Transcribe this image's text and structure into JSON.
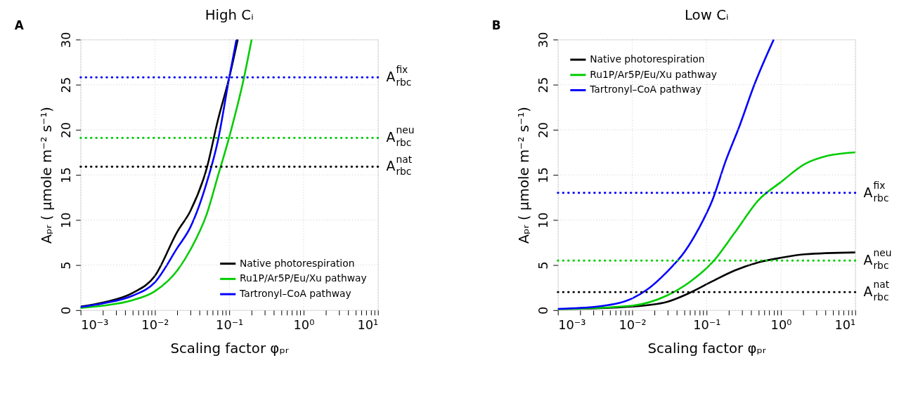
{
  "chart_data": [
    {
      "type": "line",
      "title": "High Cᵢ",
      "xlabel": "Scaling factor φₚᵣ",
      "ylabel": "Aₚᵣ ( μmole m⁻² s⁻¹)",
      "annotations": [
        "A"
      ],
      "log": "x",
      "grid": true,
      "legend": "bottom right",
      "line_style": "solid",
      "xlim": [
        0.001,
        10
      ],
      "ylim": [
        0,
        30
      ],
      "xticks": [
        {
          "value": 0.001,
          "label": "10⁻³"
        },
        {
          "value": 0.002,
          "label": null
        },
        {
          "value": 0.003,
          "label": null
        },
        {
          "value": 0.004,
          "label": null
        },
        {
          "value": 0.005,
          "label": null
        },
        {
          "value": 0.006,
          "label": null
        },
        {
          "value": 0.007,
          "label": null
        },
        {
          "value": 0.008,
          "label": null
        },
        {
          "value": 0.009,
          "label": null
        },
        {
          "value": 0.01,
          "label": "10⁻²"
        },
        {
          "value": 0.02,
          "label": null
        },
        {
          "value": 0.03,
          "label": null
        },
        {
          "value": 0.04,
          "label": null
        },
        {
          "value": 0.05,
          "label": null
        },
        {
          "value": 0.06,
          "label": null
        },
        {
          "value": 0.07,
          "label": null
        },
        {
          "value": 0.08,
          "label": null
        },
        {
          "value": 0.09,
          "label": null
        },
        {
          "value": 0.1,
          "label": "10⁻¹"
        },
        {
          "value": 0.2,
          "label": null
        },
        {
          "value": 0.3,
          "label": null
        },
        {
          "value": 0.4,
          "label": null
        },
        {
          "value": 0.5,
          "label": null
        },
        {
          "value": 0.6,
          "label": null
        },
        {
          "value": 0.7,
          "label": null
        },
        {
          "value": 0.8,
          "label": null
        },
        {
          "value": 0.9,
          "label": null
        },
        {
          "value": 1,
          "label": "10⁰"
        },
        {
          "value": 2,
          "label": null
        },
        {
          "value": 3,
          "label": null
        },
        {
          "value": 4,
          "label": null
        },
        {
          "value": 5,
          "label": null
        },
        {
          "value": 6,
          "label": null
        },
        {
          "value": 7,
          "label": null
        },
        {
          "value": 8,
          "label": null
        },
        {
          "value": 9,
          "label": null
        },
        {
          "value": 10,
          "label": "10¹"
        }
      ],
      "yticks": [
        0,
        5,
        10,
        15,
        20,
        25,
        30
      ],
      "series": [
        {
          "name": "Native photorespiration",
          "color": "#000000",
          "x": [
            0.001,
            0.002,
            0.005,
            0.01,
            0.02,
            0.03,
            0.05,
            0.07,
            0.1,
            0.13
          ],
          "values": [
            0.4,
            0.85,
            1.9,
            3.8,
            8.7,
            11.0,
            15.8,
            21.0,
            25.8,
            30
          ]
        },
        {
          "name": "Ru1P/Ar5P/Eu/Xu pathway",
          "color": "#00cc00",
          "x": [
            0.001,
            0.002,
            0.005,
            0.01,
            0.02,
            0.03,
            0.05,
            0.07,
            0.1,
            0.158,
            0.2
          ],
          "values": [
            0.25,
            0.5,
            1.1,
            2.1,
            4.4,
            6.7,
            10.7,
            14.8,
            19.2,
            25.8,
            30
          ]
        },
        {
          "name": "Tartronyl–CoA pathway",
          "color": "#0000ff",
          "x": [
            0.001,
            0.002,
            0.005,
            0.01,
            0.02,
            0.03,
            0.05,
            0.07,
            0.1,
            0.125
          ],
          "values": [
            0.35,
            0.75,
            1.6,
            3.1,
            6.9,
            9.2,
            14.2,
            18.7,
            25.8,
            30
          ]
        }
      ],
      "ref_lines": [
        {
          "axis": "y",
          "value": 25.8,
          "label": "A$^{fix}$$_{rbc}$",
          "color": "#0000ff",
          "line_style": "dotted"
        },
        {
          "axis": "y",
          "value": 19.1,
          "label": "A$^{neu}$$_{rbc}$",
          "color": "#00cc00",
          "line_style": "dotted"
        },
        {
          "axis": "y",
          "value": 15.9,
          "label": "A$^{nat}$$_{rbc}$",
          "color": "#000000",
          "line_style": "dotted"
        }
      ]
    },
    {
      "type": "line",
      "title": "Low Cᵢ",
      "xlabel": "Scaling factor φₚᵣ",
      "ylabel": "Aₚᵣ ( μmole m⁻² s⁻¹)",
      "annotations": [
        "B"
      ],
      "log": "x",
      "grid": true,
      "legend": "top left",
      "line_style": "solid",
      "xlim": [
        0.001,
        10
      ],
      "ylim": [
        0,
        30
      ],
      "xticks": [
        {
          "value": 0.001,
          "label": "10⁻³"
        },
        {
          "value": 0.002,
          "label": null
        },
        {
          "value": 0.003,
          "label": null
        },
        {
          "value": 0.004,
          "label": null
        },
        {
          "value": 0.005,
          "label": null
        },
        {
          "value": 0.006,
          "label": null
        },
        {
          "value": 0.007,
          "label": null
        },
        {
          "value": 0.008,
          "label": null
        },
        {
          "value": 0.009,
          "label": null
        },
        {
          "value": 0.01,
          "label": "10⁻²"
        },
        {
          "value": 0.02,
          "label": null
        },
        {
          "value": 0.03,
          "label": null
        },
        {
          "value": 0.04,
          "label": null
        },
        {
          "value": 0.05,
          "label": null
        },
        {
          "value": 0.06,
          "label": null
        },
        {
          "value": 0.07,
          "label": null
        },
        {
          "value": 0.08,
          "label": null
        },
        {
          "value": 0.09,
          "label": null
        },
        {
          "value": 0.1,
          "label": "10⁻¹"
        },
        {
          "value": 0.2,
          "label": null
        },
        {
          "value": 0.3,
          "label": null
        },
        {
          "value": 0.4,
          "label": null
        },
        {
          "value": 0.5,
          "label": null
        },
        {
          "value": 0.6,
          "label": null
        },
        {
          "value": 0.7,
          "label": null
        },
        {
          "value": 0.8,
          "label": null
        },
        {
          "value": 0.9,
          "label": null
        },
        {
          "value": 1,
          "label": "10⁰"
        },
        {
          "value": 2,
          "label": null
        },
        {
          "value": 3,
          "label": null
        },
        {
          "value": 4,
          "label": null
        },
        {
          "value": 5,
          "label": null
        },
        {
          "value": 6,
          "label": null
        },
        {
          "value": 7,
          "label": null
        },
        {
          "value": 8,
          "label": null
        },
        {
          "value": 9,
          "label": null
        },
        {
          "value": 10,
          "label": "10¹"
        }
      ],
      "yticks": [
        0,
        5,
        10,
        15,
        20,
        25,
        30
      ],
      "series": [
        {
          "name": "Native photorespiration",
          "color": "#000000",
          "x": [
            0.001,
            0.01,
            0.029,
            0.059,
            0.12,
            0.24,
            0.5,
            1,
            2.1,
            10
          ],
          "values": [
            0.1,
            0.4,
            0.9,
            1.9,
            3.2,
            4.4,
            5.3,
            5.8,
            6.2,
            6.4
          ]
        },
        {
          "name": "Ru1P/Ar5P/Eu/Xu pathway",
          "color": "#00cc00",
          "x": [
            0.001,
            0.01,
            0.029,
            0.059,
            0.12,
            0.24,
            0.5,
            1,
            2.1,
            4.2,
            10
          ],
          "values": [
            0.1,
            0.5,
            1.6,
            3.1,
            5.3,
            8.6,
            12.2,
            14.2,
            16.2,
            17.1,
            17.5
          ]
        },
        {
          "name": "Tartronyl–CoA pathway",
          "color": "#0000ff",
          "x": [
            0.001,
            0.0034,
            0.01,
            0.016,
            0.029,
            0.051,
            0.078,
            0.12,
            0.18,
            0.28,
            0.43,
            0.8
          ],
          "values": [
            0.15,
            0.4,
            1.3,
            2.3,
            4.2,
            6.5,
            9.0,
            12.2,
            16.5,
            20.5,
            24.8,
            30
          ]
        }
      ],
      "ref_lines": [
        {
          "axis": "y",
          "value": 13.0,
          "label": "A$^{fix}$$_{rbc}$",
          "color": "#0000ff",
          "line_style": "dotted"
        },
        {
          "axis": "y",
          "value": 5.5,
          "label": "A$^{neu}$$_{rbc}$",
          "color": "#00cc00",
          "line_style": "dotted"
        },
        {
          "axis": "y",
          "value": 2.0,
          "label": "A$^{nat}$$_{rbc}$",
          "color": "#000000",
          "line_style": "dotted"
        }
      ]
    }
  ]
}
